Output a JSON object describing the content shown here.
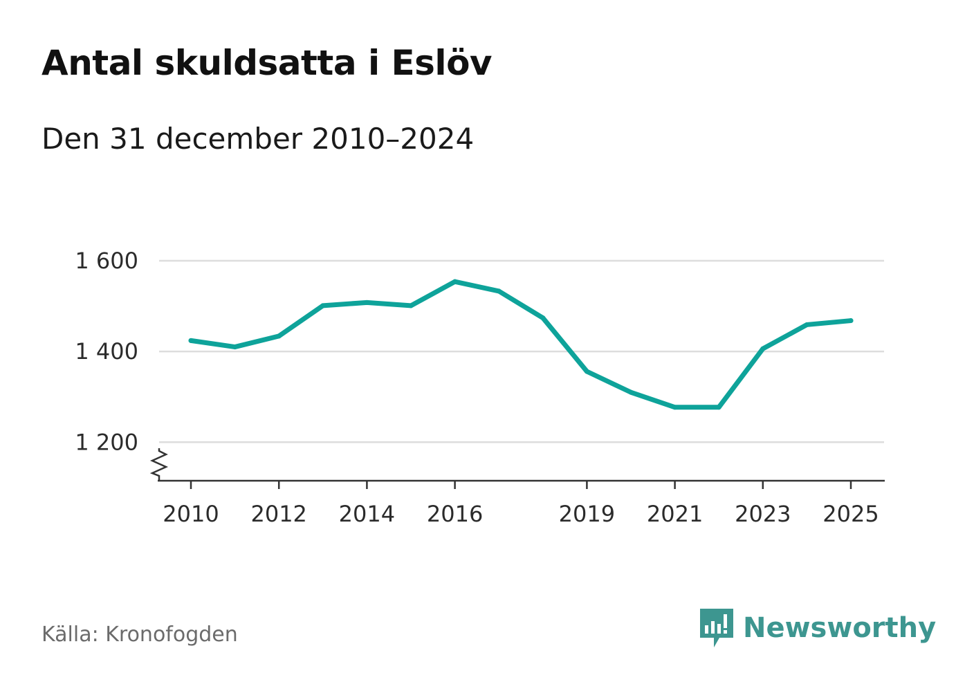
{
  "title": "Antal skuldsatta i Eslöv",
  "subtitle": "Den 31 december 2010–2024",
  "source": "Källa: Kronofogden",
  "brand": {
    "name": "Newsworthy",
    "icon": "newsworthy-logo-icon",
    "color": "#3d9690"
  },
  "colors": {
    "line": "#0ea39a",
    "grid": "#dddddd",
    "axis": "#333333"
  },
  "chart_data": {
    "type": "line",
    "title": "Antal skuldsatta i Eslöv",
    "xlabel": "",
    "ylabel": "",
    "x": [
      2010,
      2011,
      2012,
      2013,
      2014,
      2015,
      2016,
      2017,
      2018,
      2019,
      2020,
      2021,
      2022,
      2023,
      2024,
      2025
    ],
    "series": [
      {
        "name": "Antal skuldsatta",
        "values": [
          1424,
          1410,
          1434,
          1501,
          1508,
          1501,
          1554,
          1533,
          1474,
          1356,
          1310,
          1277,
          1277,
          1406,
          1459,
          1468
        ]
      }
    ],
    "xticks": [
      2010,
      2012,
      2014,
      2016,
      2019,
      2021,
      2023,
      2025
    ],
    "xtick_labels": [
      "2010",
      "2012",
      "2014",
      "2016",
      "2019",
      "2021",
      "2023",
      "2025"
    ],
    "yticks": [
      1200,
      1400,
      1600
    ],
    "ytick_labels": [
      "1 200",
      "1 400",
      "1 600"
    ],
    "xlim": [
      2010,
      2025
    ],
    "ylim": [
      1115,
      1600
    ],
    "axis_break": true,
    "grid": true
  }
}
